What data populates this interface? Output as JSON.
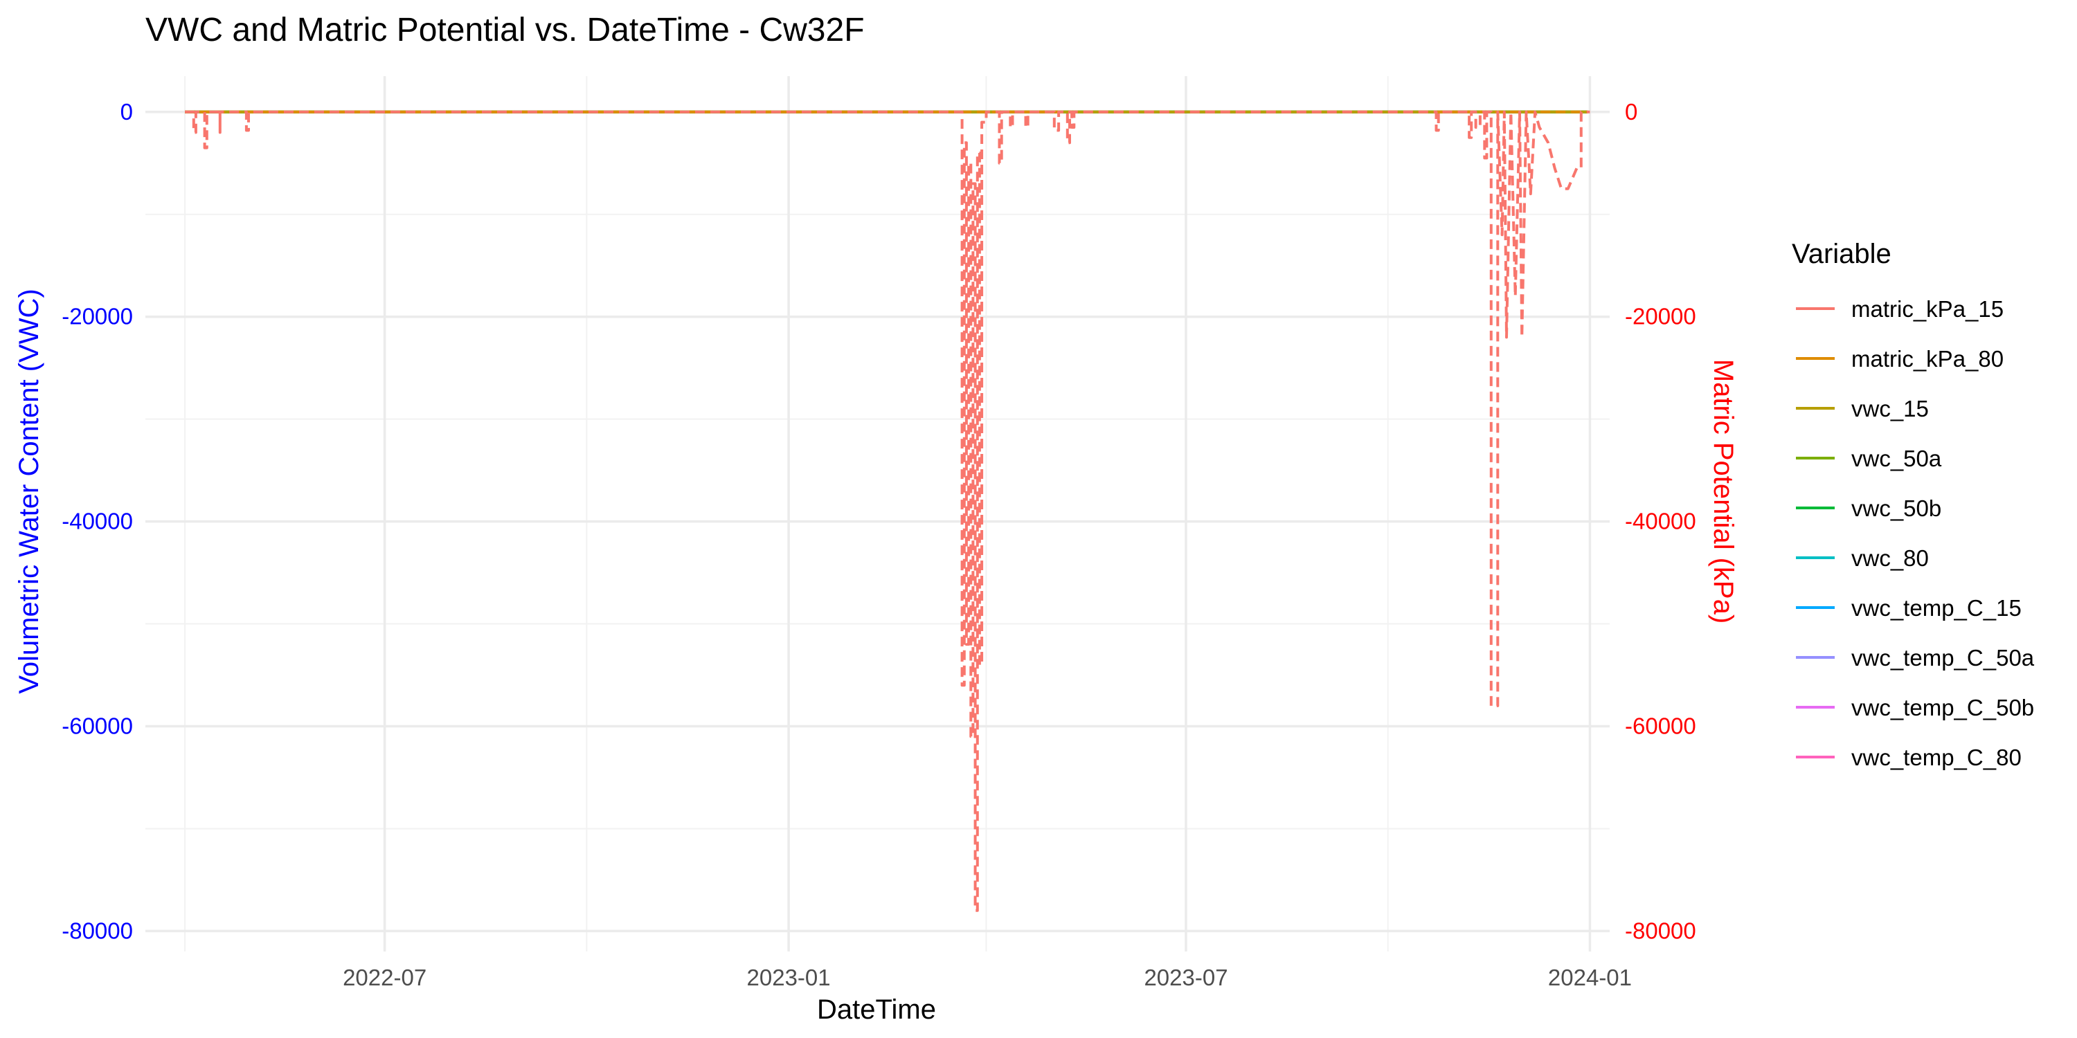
{
  "chart_data": {
    "type": "line",
    "title": "VWC and Matric Potential vs. DateTime - Cw32F",
    "xlabel": "DateTime",
    "ylabel_left": "Volumetric Water Content (VWC)",
    "ylabel_right": "Matric Potential (kPa)",
    "xlim": [
      "2022-03-14",
      "2024-01-10"
    ],
    "ylim": [
      -82000,
      3500
    ],
    "x_ticks": [
      "2022-07",
      "2023-01",
      "2023-07",
      "2024-01"
    ],
    "x_tick_dates": [
      "2022-07-01",
      "2023-01-01",
      "2023-07-01",
      "2024-01-01"
    ],
    "x_minor_dates": [
      "2022-04-01",
      "2022-10-01",
      "2023-04-01",
      "2023-10-01"
    ],
    "y_ticks_left": [
      0,
      -20000,
      -40000,
      -60000,
      -80000
    ],
    "y_ticks_right": [
      0,
      -20000,
      -40000,
      -60000,
      -80000
    ],
    "y_ticks_left_labels": [
      "0",
      "-20000",
      "-40000",
      "-60000",
      "-80000"
    ],
    "y_ticks_right_labels": [
      "0",
      "-20000",
      "-40000",
      "-60000",
      "-80000"
    ],
    "y_minor": [
      -10000,
      -30000,
      -50000,
      -70000
    ],
    "grid": true,
    "legend": {
      "title": "Variable",
      "position": "right"
    },
    "series": [
      {
        "name": "matric_kPa_15",
        "color": "#F8766D",
        "dashed": true,
        "x": [
          "2022-04-01",
          "2022-04-05",
          "2022-04-05",
          "2022-04-06",
          "2022-04-06",
          "2022-04-10",
          "2022-04-10",
          "2022-04-11",
          "2022-04-11",
          "2022-04-17",
          "2022-04-17",
          "2022-04-17",
          "2022-04-17",
          "2022-04-29",
          "2022-04-29",
          "2022-04-30",
          "2022-04-30",
          "2023-03-21",
          "2023-03-21",
          "2023-03-22",
          "2023-03-22",
          "2023-03-23",
          "2023-03-23",
          "2023-03-24",
          "2023-03-24",
          "2023-03-25",
          "2023-03-25",
          "2023-03-26",
          "2023-03-26",
          "2023-03-27",
          "2023-03-27",
          "2023-03-28",
          "2023-03-28",
          "2023-03-29",
          "2023-03-29",
          "2023-03-30",
          "2023-03-30",
          "2023-03-31",
          "2023-03-31",
          "2023-04-01",
          "2023-04-01",
          "2023-04-07",
          "2023-04-07",
          "2023-04-08",
          "2023-04-08",
          "2023-04-12",
          "2023-04-12",
          "2023-04-13",
          "2023-04-13",
          "2023-04-19",
          "2023-04-19",
          "2023-04-20",
          "2023-04-20",
          "2023-05-02",
          "2023-05-02",
          "2023-05-04",
          "2023-05-04",
          "2023-05-08",
          "2023-05-08",
          "2023-05-09",
          "2023-05-09",
          "2023-05-10",
          "2023-05-10",
          "2023-05-11",
          "2023-05-11",
          "2023-10-23",
          "2023-10-23",
          "2023-10-24",
          "2023-10-24",
          "2023-11-07",
          "2023-11-07",
          "2023-11-08",
          "2023-11-08",
          "2023-11-10",
          "2023-11-10",
          "2023-11-12",
          "2023-11-12",
          "2023-11-14",
          "2023-11-14",
          "2023-11-15",
          "2023-11-15",
          "2023-11-17",
          "2023-11-17",
          "2023-11-20",
          "2023-11-20",
          "2023-11-22",
          "2023-11-23",
          "2023-11-24",
          "2023-11-26",
          "2023-11-28",
          "2023-11-30",
          "2023-12-01",
          "2023-12-03",
          "2023-12-05",
          "2023-12-07",
          "2023-12-09",
          "2023-12-13",
          "2023-12-16",
          "2023-12-19",
          "2023-12-22",
          "2023-12-24",
          "2023-12-26",
          "2023-12-28",
          "2023-12-28",
          "2024-01-01"
        ],
        "y": [
          0,
          0,
          -2000,
          -2000,
          0,
          0,
          -3500,
          -3500,
          0,
          0,
          -2000,
          -2000,
          0,
          0,
          -1800,
          -1800,
          0,
          0,
          -56000,
          -56000,
          -3000,
          -3000,
          -52000,
          -52000,
          -5000,
          -5000,
          -61000,
          -61000,
          -7000,
          -7000,
          -78000,
          -78000,
          -4000,
          -4000,
          -54000,
          -54000,
          -1000,
          -1000,
          -1000,
          -1000,
          0,
          0,
          -5000,
          -5000,
          0,
          0,
          -1500,
          -1500,
          0,
          0,
          -1500,
          -1500,
          0,
          0,
          -1800,
          -1800,
          0,
          0,
          -3000,
          -3000,
          0,
          0,
          -1500,
          -1500,
          0,
          0,
          -1800,
          -1800,
          0,
          0,
          -2500,
          -2500,
          0,
          0,
          -1500,
          -1500,
          0,
          0,
          -4500,
          -4500,
          0,
          0,
          -58000,
          -58000,
          0,
          -12000,
          0,
          -22000,
          0,
          -18000,
          0,
          -22000,
          0,
          -8000,
          0,
          -1500,
          -3000,
          -5500,
          -7500,
          -7500,
          -6500,
          -5500,
          -5500,
          0,
          0
        ]
      },
      {
        "name": "matric_kPa_80",
        "color": "#DE8C00",
        "dashed": true,
        "x": [
          "2022-04-01",
          "2023-12-31"
        ],
        "y": [
          0,
          0
        ]
      },
      {
        "name": "vwc_15",
        "color": "#B79F00",
        "dashed": false,
        "x": [
          "2022-04-01",
          "2023-12-31"
        ],
        "y": [
          0,
          0
        ]
      },
      {
        "name": "vwc_50a",
        "color": "#7CAE00",
        "dashed": false,
        "x": [
          "2022-04-01",
          "2023-12-31"
        ],
        "y": [
          0,
          0
        ]
      },
      {
        "name": "vwc_50b",
        "color": "#00BA38",
        "dashed": false,
        "x": [
          "2022-04-01",
          "2023-12-31"
        ],
        "y": [
          0,
          0
        ]
      },
      {
        "name": "vwc_80",
        "color": "#00BFC4",
        "dashed": false,
        "x": [
          "2022-04-01",
          "2023-12-31"
        ],
        "y": [
          0,
          0
        ]
      },
      {
        "name": "vwc_temp_C_15",
        "color": "#00A9FF",
        "dashed": false,
        "x": [
          "2022-04-01",
          "2023-12-31"
        ],
        "y": [
          0,
          0
        ]
      },
      {
        "name": "vwc_temp_C_50a",
        "color": "#9590FF",
        "dashed": false,
        "x": [
          "2022-04-01",
          "2023-12-31"
        ],
        "y": [
          0,
          0
        ]
      },
      {
        "name": "vwc_temp_C_50b",
        "color": "#E76BF3",
        "dashed": false,
        "x": [
          "2022-04-01",
          "2023-12-31"
        ],
        "y": [
          0,
          0
        ]
      },
      {
        "name": "vwc_temp_C_80",
        "color": "#FF62BC",
        "dashed": false,
        "x": [
          "2022-04-01",
          "2023-12-31"
        ],
        "y": [
          0,
          0
        ]
      }
    ]
  }
}
